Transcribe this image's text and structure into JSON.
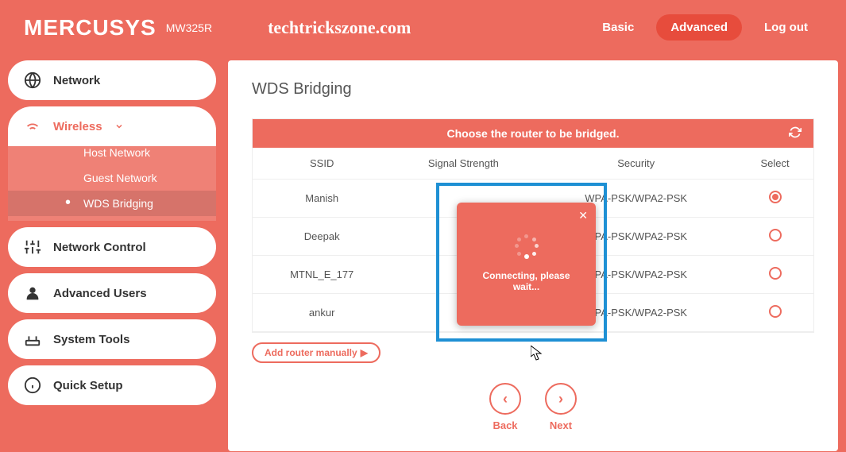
{
  "header": {
    "brand": "MERCUSYS",
    "model": "MW325R",
    "watermark": "techtrickszone.com",
    "nav_basic": "Basic",
    "nav_advanced": "Advanced",
    "nav_logout": "Log out"
  },
  "sidebar": {
    "network": "Network",
    "wireless": "Wireless",
    "sub_host": "Host Network",
    "sub_guest": "Guest Network",
    "sub_wds": "WDS Bridging",
    "network_control": "Network Control",
    "advanced_users": "Advanced Users",
    "system_tools": "System Tools",
    "quick_setup": "Quick Setup"
  },
  "page": {
    "title": "WDS Bridging",
    "table_caption": "Choose the router to be bridged.",
    "col_ssid": "SSID",
    "col_signal": "Signal Strength",
    "col_security": "Security",
    "col_select": "Select",
    "rows": [
      {
        "ssid": "Manish",
        "security": "WPA-PSK/WPA2-PSK",
        "selected": true
      },
      {
        "ssid": "Deepak",
        "security": "WPA-PSK/WPA2-PSK",
        "selected": false
      },
      {
        "ssid": "MTNL_E_177",
        "security": "WPA-PSK/WPA2-PSK",
        "selected": false
      },
      {
        "ssid": "ankur",
        "security": "WPA-PSK/WPA2-PSK",
        "selected": false
      }
    ],
    "add_manual": "Add router manually",
    "back": "Back",
    "next": "Next"
  },
  "modal": {
    "text": "Connecting, please wait..."
  },
  "colors": {
    "primary": "#ed6b5e",
    "accent": "#1e90d4"
  }
}
